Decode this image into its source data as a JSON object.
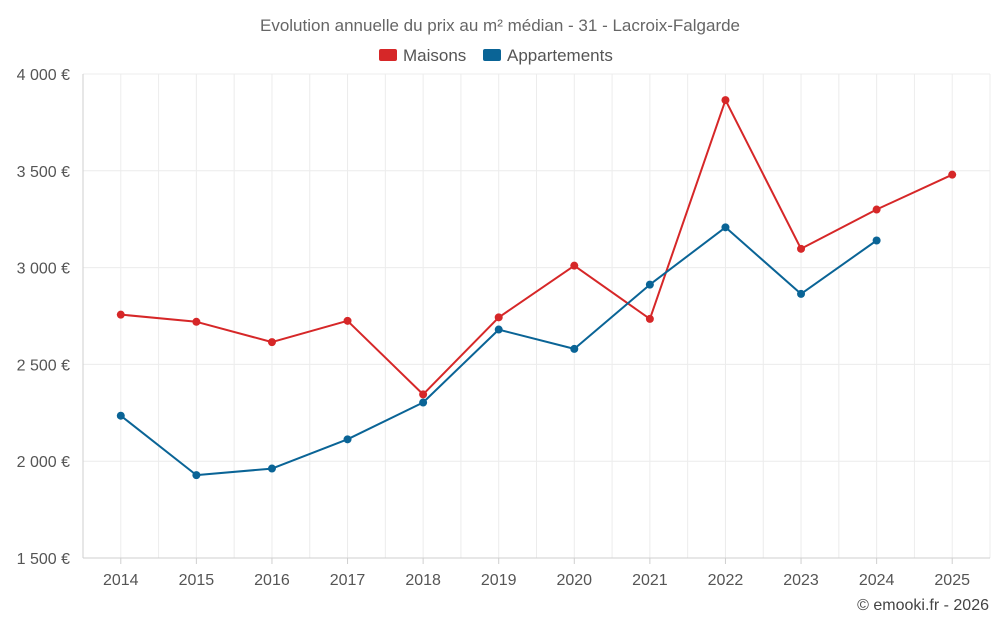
{
  "chart_data": {
    "type": "line",
    "title": "Evolution annuelle du prix au m² médian - 31 - Lacroix-Falgarde",
    "categories": [
      "2014",
      "2015",
      "2016",
      "2017",
      "2018",
      "2019",
      "2020",
      "2021",
      "2022",
      "2023",
      "2024",
      "2025"
    ],
    "y_ticks": [
      1500,
      2000,
      2500,
      3000,
      3500,
      4000
    ],
    "y_tick_labels": [
      "1 500 €",
      "2 000 €",
      "2 500 €",
      "3 000 €",
      "3 500 €",
      "4 000 €"
    ],
    "ylim": [
      1500,
      4000
    ],
    "xlabel": "",
    "ylabel": "",
    "grid": true,
    "legend_position": "top-center",
    "series": [
      {
        "name": "Maisons",
        "color": "#d62728",
        "values": [
          2757,
          2720,
          2615,
          2725,
          2345,
          2743,
          3010,
          2735,
          3865,
          3097,
          3300,
          3480
        ]
      },
      {
        "name": "Appartements",
        "color": "#0a6496",
        "values": [
          2235,
          1928,
          1962,
          2113,
          2303,
          2680,
          2580,
          2912,
          3208,
          2864,
          3140,
          null
        ]
      }
    ],
    "credit": "© emooki.fr - 2026"
  }
}
